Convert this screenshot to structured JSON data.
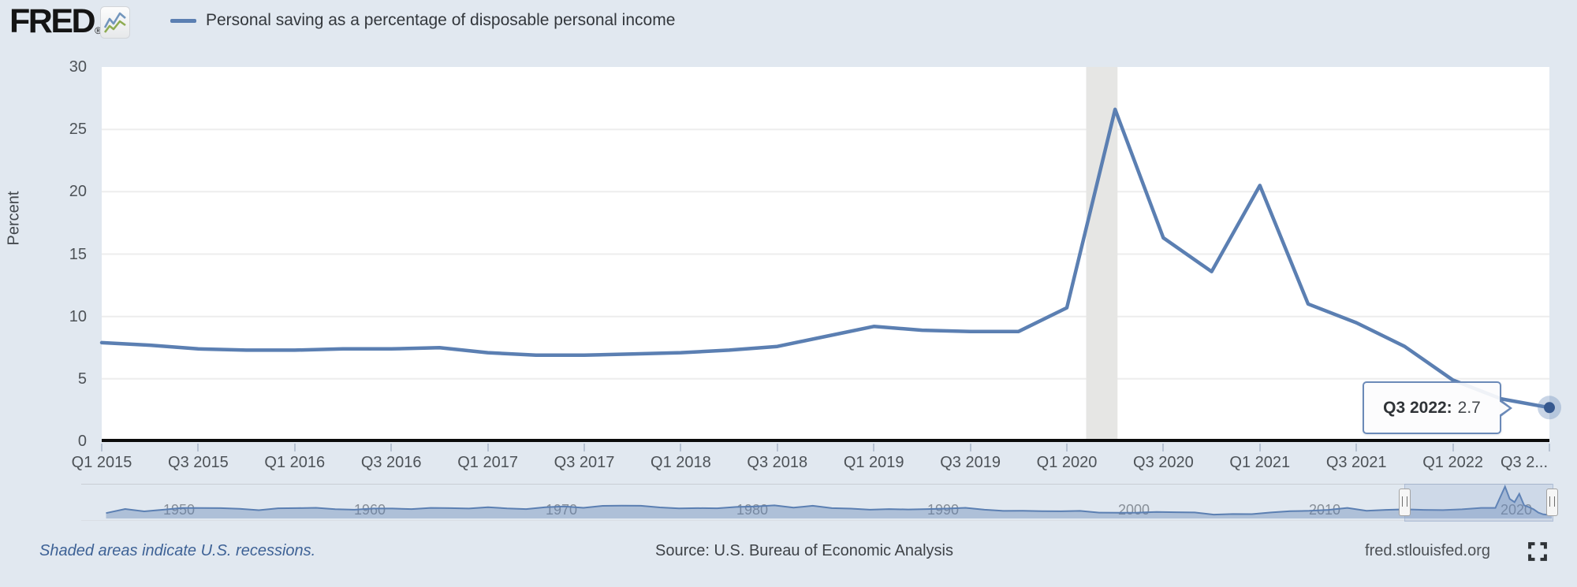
{
  "header": {
    "logo_text": "FRED",
    "registered_mark": "®",
    "legend": {
      "label": "Personal saving as a percentage of disposable personal income",
      "line_color": "#5b7fb2"
    }
  },
  "chart_data": {
    "type": "line",
    "title": "Personal saving as a percentage of disposable personal income",
    "ylabel": "Percent",
    "ylim": [
      0,
      30
    ],
    "yticks": [
      0,
      5,
      10,
      15,
      20,
      25,
      30
    ],
    "grid": true,
    "line_color": "#5b7fb2",
    "categories": [
      "Q1 2015",
      "Q2 2015",
      "Q3 2015",
      "Q4 2015",
      "Q1 2016",
      "Q2 2016",
      "Q3 2016",
      "Q4 2016",
      "Q1 2017",
      "Q2 2017",
      "Q3 2017",
      "Q4 2017",
      "Q1 2018",
      "Q2 2018",
      "Q3 2018",
      "Q4 2018",
      "Q1 2019",
      "Q2 2019",
      "Q3 2019",
      "Q4 2019",
      "Q1 2020",
      "Q2 2020",
      "Q3 2020",
      "Q4 2020",
      "Q1 2021",
      "Q2 2021",
      "Q3 2021",
      "Q4 2021",
      "Q1 2022",
      "Q2 2022",
      "Q3 2022"
    ],
    "values": [
      7.9,
      7.7,
      7.4,
      7.3,
      7.3,
      7.4,
      7.4,
      7.5,
      7.1,
      6.9,
      6.9,
      7.0,
      7.1,
      7.3,
      7.6,
      8.4,
      9.2,
      8.9,
      8.8,
      8.8,
      10.7,
      26.6,
      16.3,
      13.6,
      20.5,
      11.0,
      9.5,
      7.6,
      4.9,
      3.4,
      2.7
    ],
    "xtick_labels": [
      "Q1 2015",
      "Q3 2015",
      "Q1 2016",
      "Q3 2016",
      "Q1 2017",
      "Q3 2017",
      "Q1 2018",
      "Q3 2018",
      "Q1 2019",
      "Q3 2019",
      "Q1 2020",
      "Q3 2020",
      "Q1 2021",
      "Q3 2021",
      "Q1 2022",
      "Q3 2..."
    ],
    "recession_band": {
      "from_quarter_index": 20.4,
      "to_quarter_index": 21.05,
      "color": "#e6e6e4"
    },
    "tooltip": {
      "label": "Q3 2022:",
      "value": "2.7",
      "point_category": "Q3 2022",
      "point_value": 2.7
    },
    "navigator": {
      "type": "area",
      "year_range": [
        1945.7,
        2022.7
      ],
      "selected_range": [
        2015.0,
        2022.7
      ],
      "decade_labels": [
        "1950",
        "1960",
        "1970",
        "1980",
        "1990",
        "2000",
        "2010",
        "2020"
      ],
      "points": [
        [
          1947,
          4.5
        ],
        [
          1948,
          7.9
        ],
        [
          1949,
          5.9
        ],
        [
          1950,
          7.3
        ],
        [
          1951,
          8.8
        ],
        [
          1952,
          8.7
        ],
        [
          1953,
          8.6
        ],
        [
          1954,
          8.1
        ],
        [
          1955,
          6.9
        ],
        [
          1956,
          8.5
        ],
        [
          1957,
          8.6
        ],
        [
          1958,
          8.9
        ],
        [
          1959,
          7.7
        ],
        [
          1960,
          7.3
        ],
        [
          1961,
          8.3
        ],
        [
          1962,
          8.3
        ],
        [
          1963,
          7.8
        ],
        [
          1964,
          8.8
        ],
        [
          1965,
          8.6
        ],
        [
          1966,
          8.3
        ],
        [
          1967,
          9.4
        ],
        [
          1968,
          8.4
        ],
        [
          1969,
          7.8
        ],
        [
          1970,
          9.4
        ],
        [
          1971,
          10.0
        ],
        [
          1972,
          8.9
        ],
        [
          1973,
          10.5
        ],
        [
          1974,
          10.7
        ],
        [
          1975,
          10.6
        ],
        [
          1976,
          9.2
        ],
        [
          1977,
          8.4
        ],
        [
          1978,
          8.6
        ],
        [
          1979,
          8.5
        ],
        [
          1980,
          9.6
        ],
        [
          1981,
          10.0
        ],
        [
          1982,
          10.9
        ],
        [
          1983,
          9.0
        ],
        [
          1984,
          10.6
        ],
        [
          1985,
          8.6
        ],
        [
          1986,
          8.2
        ],
        [
          1987,
          7.3
        ],
        [
          1988,
          7.8
        ],
        [
          1989,
          7.5
        ],
        [
          1990,
          7.8
        ],
        [
          1991,
          8.2
        ],
        [
          1992,
          8.9
        ],
        [
          1993,
          7.3
        ],
        [
          1994,
          6.3
        ],
        [
          1995,
          6.4
        ],
        [
          1996,
          6.1
        ],
        [
          1997,
          6.0
        ],
        [
          1998,
          6.3
        ],
        [
          1999,
          4.9
        ],
        [
          2000,
          4.8
        ],
        [
          2001,
          4.9
        ],
        [
          2002,
          5.4
        ],
        [
          2003,
          5.2
        ],
        [
          2004,
          5.0
        ],
        [
          2005,
          3.2
        ],
        [
          2006,
          3.7
        ],
        [
          2007,
          3.6
        ],
        [
          2008,
          5.0
        ],
        [
          2009,
          6.1
        ],
        [
          2010,
          6.4
        ],
        [
          2011,
          7.2
        ],
        [
          2012,
          8.8
        ],
        [
          2013,
          6.4
        ],
        [
          2014,
          7.2
        ],
        [
          2015,
          7.6
        ],
        [
          2016,
          7.2
        ],
        [
          2017,
          7.0
        ],
        [
          2018,
          7.6
        ],
        [
          2019,
          8.8
        ],
        [
          2019.75,
          8.8
        ],
        [
          2020.25,
          26.6
        ],
        [
          2020.5,
          16.3
        ],
        [
          2020.75,
          13.6
        ],
        [
          2021.0,
          20.5
        ],
        [
          2021.25,
          11.0
        ],
        [
          2021.5,
          9.5
        ],
        [
          2021.75,
          7.6
        ],
        [
          2022,
          4.9
        ],
        [
          2022.25,
          3.4
        ],
        [
          2022.7,
          2.7
        ]
      ]
    }
  },
  "colors": {
    "page_bg": "#e1e8f0",
    "plot_bg": "#ffffff",
    "line": "#5b7fb2",
    "dot": "#35588f",
    "dot_halo": "rgba(101,134,183,0.35)",
    "recession_gray": "#e6e6e4",
    "gridline": "#ededed"
  },
  "footer": {
    "recessions_note": "Shaded areas indicate U.S. recessions.",
    "source": "Source: U.S. Bureau of Economic Analysis",
    "site_link": "fred.stlouisfed.org"
  }
}
